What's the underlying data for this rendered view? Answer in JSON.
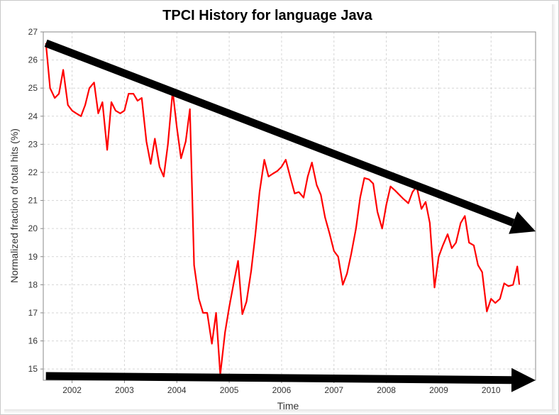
{
  "chart_data": {
    "type": "line",
    "title": "TPCI History for language Java",
    "xlabel": "Time",
    "ylabel": "Normalized fraction of total hits (%)",
    "xlim": [
      2001.45,
      2010.85
    ],
    "ylim": [
      14.6,
      27
    ],
    "x_ticks": [
      2002,
      2003,
      2004,
      2005,
      2006,
      2007,
      2008,
      2009,
      2010
    ],
    "y_ticks": [
      15,
      16,
      17,
      18,
      19,
      20,
      21,
      22,
      23,
      24,
      25,
      26,
      27
    ],
    "grid": true,
    "series": [
      {
        "color": "#ff0000",
        "points": [
          [
            2001.5,
            26.6
          ],
          [
            2001.58,
            25.0
          ],
          [
            2001.67,
            24.65
          ],
          [
            2001.75,
            24.8
          ],
          [
            2001.83,
            25.65
          ],
          [
            2001.92,
            24.4
          ],
          [
            2002.0,
            24.2
          ],
          [
            2002.08,
            24.1
          ],
          [
            2002.17,
            24.0
          ],
          [
            2002.25,
            24.4
          ],
          [
            2002.33,
            25.0
          ],
          [
            2002.42,
            25.2
          ],
          [
            2002.5,
            24.1
          ],
          [
            2002.58,
            24.5
          ],
          [
            2002.67,
            22.8
          ],
          [
            2002.75,
            24.5
          ],
          [
            2002.83,
            24.2
          ],
          [
            2002.92,
            24.1
          ],
          [
            2003.0,
            24.2
          ],
          [
            2003.08,
            24.8
          ],
          [
            2003.17,
            24.8
          ],
          [
            2003.25,
            24.55
          ],
          [
            2003.33,
            24.65
          ],
          [
            2003.42,
            23.1
          ],
          [
            2003.5,
            22.3
          ],
          [
            2003.58,
            23.2
          ],
          [
            2003.67,
            22.2
          ],
          [
            2003.75,
            21.85
          ],
          [
            2003.83,
            23.0
          ],
          [
            2003.92,
            24.9
          ],
          [
            2004.0,
            23.6
          ],
          [
            2004.08,
            22.5
          ],
          [
            2004.17,
            23.1
          ],
          [
            2004.25,
            24.25
          ],
          [
            2004.33,
            18.7
          ],
          [
            2004.42,
            17.5
          ],
          [
            2004.5,
            17.0
          ],
          [
            2004.58,
            17.0
          ],
          [
            2004.67,
            15.9
          ],
          [
            2004.75,
            17.0
          ],
          [
            2004.83,
            14.8
          ],
          [
            2004.92,
            16.3
          ],
          [
            2005.0,
            17.2
          ],
          [
            2005.08,
            18.0
          ],
          [
            2005.17,
            18.85
          ],
          [
            2005.25,
            16.95
          ],
          [
            2005.33,
            17.4
          ],
          [
            2005.42,
            18.5
          ],
          [
            2005.5,
            19.8
          ],
          [
            2005.58,
            21.3
          ],
          [
            2005.67,
            22.45
          ],
          [
            2005.75,
            21.85
          ],
          [
            2005.83,
            21.95
          ],
          [
            2005.92,
            22.05
          ],
          [
            2006.0,
            22.2
          ],
          [
            2006.08,
            22.45
          ],
          [
            2006.17,
            21.8
          ],
          [
            2006.25,
            21.25
          ],
          [
            2006.33,
            21.3
          ],
          [
            2006.42,
            21.1
          ],
          [
            2006.5,
            21.85
          ],
          [
            2006.58,
            22.35
          ],
          [
            2006.67,
            21.55
          ],
          [
            2006.75,
            21.2
          ],
          [
            2006.83,
            20.4
          ],
          [
            2006.92,
            19.8
          ],
          [
            2007.0,
            19.2
          ],
          [
            2007.08,
            19.0
          ],
          [
            2007.17,
            18.0
          ],
          [
            2007.25,
            18.4
          ],
          [
            2007.33,
            19.1
          ],
          [
            2007.42,
            20.0
          ],
          [
            2007.5,
            21.1
          ],
          [
            2007.58,
            21.8
          ],
          [
            2007.67,
            21.75
          ],
          [
            2007.75,
            21.6
          ],
          [
            2007.83,
            20.6
          ],
          [
            2007.92,
            20.0
          ],
          [
            2008.0,
            20.85
          ],
          [
            2008.08,
            21.5
          ],
          [
            2008.17,
            21.35
          ],
          [
            2008.25,
            21.2
          ],
          [
            2008.33,
            21.05
          ],
          [
            2008.42,
            20.9
          ],
          [
            2008.5,
            21.3
          ],
          [
            2008.58,
            21.5
          ],
          [
            2008.67,
            20.7
          ],
          [
            2008.75,
            20.95
          ],
          [
            2008.83,
            20.2
          ],
          [
            2008.92,
            17.9
          ],
          [
            2009.0,
            19.0
          ],
          [
            2009.08,
            19.4
          ],
          [
            2009.17,
            19.8
          ],
          [
            2009.25,
            19.3
          ],
          [
            2009.33,
            19.5
          ],
          [
            2009.42,
            20.2
          ],
          [
            2009.5,
            20.45
          ],
          [
            2009.58,
            19.5
          ],
          [
            2009.67,
            19.4
          ],
          [
            2009.75,
            18.7
          ],
          [
            2009.83,
            18.45
          ],
          [
            2009.92,
            17.05
          ],
          [
            2010.0,
            17.5
          ],
          [
            2010.08,
            17.35
          ],
          [
            2010.17,
            17.5
          ],
          [
            2010.25,
            18.05
          ],
          [
            2010.33,
            17.95
          ],
          [
            2010.42,
            18.0
          ],
          [
            2010.5,
            18.65
          ],
          [
            2010.54,
            18.0
          ]
        ]
      }
    ],
    "annotations": [
      {
        "type": "arrow",
        "color": "#000000",
        "from": [
          2001.5,
          26.6
        ],
        "to": [
          2010.85,
          19.9
        ]
      },
      {
        "type": "arrow",
        "color": "#000000",
        "from": [
          2001.5,
          14.75
        ],
        "to": [
          2010.85,
          14.6
        ]
      }
    ]
  }
}
